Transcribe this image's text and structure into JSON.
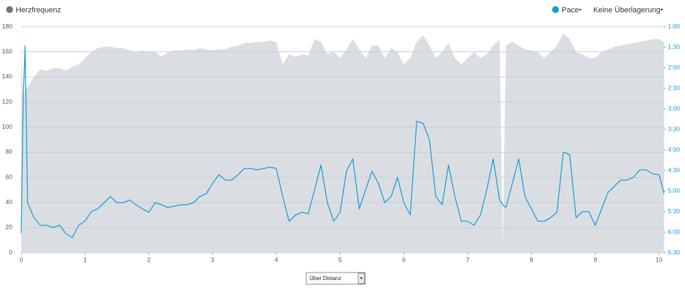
{
  "chart_data": {
    "type": "line",
    "x": [
      0,
      0.03,
      0.06,
      0.1,
      0.2,
      0.3,
      0.4,
      0.5,
      0.6,
      0.7,
      0.8,
      0.9,
      1.0,
      1.1,
      1.2,
      1.3,
      1.4,
      1.5,
      1.6,
      1.7,
      1.8,
      1.9,
      2.0,
      2.1,
      2.2,
      2.3,
      2.4,
      2.5,
      2.6,
      2.7,
      2.8,
      2.9,
      3.0,
      3.1,
      3.2,
      3.3,
      3.4,
      3.5,
      3.6,
      3.7,
      3.8,
      3.9,
      4.0,
      4.1,
      4.2,
      4.3,
      4.4,
      4.5,
      4.6,
      4.7,
      4.8,
      4.9,
      5.0,
      5.1,
      5.2,
      5.3,
      5.4,
      5.5,
      5.6,
      5.7,
      5.8,
      5.9,
      6.0,
      6.1,
      6.2,
      6.3,
      6.4,
      6.5,
      6.6,
      6.7,
      6.8,
      6.9,
      7.0,
      7.1,
      7.2,
      7.3,
      7.4,
      7.5,
      7.55,
      7.6,
      7.7,
      7.8,
      7.9,
      8.0,
      8.1,
      8.2,
      8.3,
      8.4,
      8.5,
      8.6,
      8.7,
      8.8,
      8.9,
      9.0,
      9.1,
      9.2,
      9.3,
      9.4,
      9.5,
      9.6,
      9.7,
      9.8,
      9.9,
      10.0,
      10.08
    ],
    "series": [
      {
        "name": "Herzfrequenz",
        "color": "#dadee2",
        "fill": "area",
        "values": [
          160,
          120,
          130,
          132,
          140,
          146,
          145,
          147,
          147,
          145,
          148,
          150,
          155,
          160,
          163,
          164,
          164,
          163,
          163,
          161,
          160,
          161,
          160,
          160,
          156,
          160,
          161,
          161,
          162,
          161,
          163,
          162,
          161,
          162,
          162,
          164,
          165,
          167,
          167,
          168,
          168,
          169,
          168,
          150,
          158,
          156,
          158,
          157,
          170,
          168,
          158,
          160,
          155,
          162,
          170,
          162,
          155,
          165,
          165,
          155,
          163,
          160,
          150,
          155,
          168,
          173,
          165,
          155,
          160,
          167,
          155,
          150,
          155,
          160,
          155,
          158,
          165,
          170,
          5,
          165,
          168,
          165,
          162,
          161,
          160,
          155,
          160,
          165,
          175,
          170,
          160,
          158,
          155,
          155,
          160,
          162,
          164,
          165,
          166,
          167,
          168,
          169,
          170,
          170,
          168
        ]
      },
      {
        "name": "Pace",
        "color": "#1a9ad6",
        "axis": "y2",
        "values": [
          361,
          170,
          88,
          317,
          339,
          350,
          350,
          353,
          350,
          362,
          368,
          350,
          344,
          330,
          326,
          317,
          308,
          317,
          317,
          313,
          320,
          326,
          331,
          317,
          320,
          324,
          322,
          320,
          320,
          317,
          308,
          304,
          289,
          276,
          284,
          284,
          276,
          267,
          267,
          269,
          267,
          265,
          267,
          308,
          344,
          335,
          331,
          333,
          298,
          262,
          317,
          344,
          331,
          271,
          253,
          326,
          298,
          271,
          289,
          317,
          308,
          280,
          317,
          335,
          198,
          201,
          225,
          308,
          320,
          262,
          308,
          344,
          344,
          350,
          335,
          298,
          253,
          313,
          320,
          324,
          289,
          253,
          308,
          326,
          344,
          344,
          339,
          331,
          243,
          247,
          339,
          330,
          330,
          350,
          326,
          302,
          293,
          284,
          284,
          280,
          269,
          269,
          275,
          276,
          304
        ]
      }
    ],
    "xlim": [
      0,
      10.08
    ],
    "xticks": [
      0,
      1,
      2,
      3,
      4,
      5,
      6,
      7,
      8,
      9,
      10
    ],
    "ylim": [
      0,
      180
    ],
    "yticks": [
      0,
      20,
      40,
      60,
      80,
      100,
      120,
      140,
      160,
      180
    ],
    "y2lim": [
      390,
      60
    ],
    "y2ticks": [
      {
        "value": 60,
        "label": "1:00"
      },
      {
        "value": 90,
        "label": "1:30"
      },
      {
        "value": 120,
        "label": "2:00"
      },
      {
        "value": 150,
        "label": "2:30"
      },
      {
        "value": 180,
        "label": "3:00"
      },
      {
        "value": 210,
        "label": "3:30"
      },
      {
        "value": 240,
        "label": "4:00"
      },
      {
        "value": 270,
        "label": "4:30"
      },
      {
        "value": 300,
        "label": "5:00"
      },
      {
        "value": 330,
        "label": "5:30"
      },
      {
        "value": 360,
        "label": "6:00"
      },
      {
        "value": 390,
        "label": "6:30"
      }
    ],
    "grid": true
  },
  "controls": {
    "overlay": "Keine Überlagerung",
    "x_axis_mode": "Über Distanz"
  }
}
